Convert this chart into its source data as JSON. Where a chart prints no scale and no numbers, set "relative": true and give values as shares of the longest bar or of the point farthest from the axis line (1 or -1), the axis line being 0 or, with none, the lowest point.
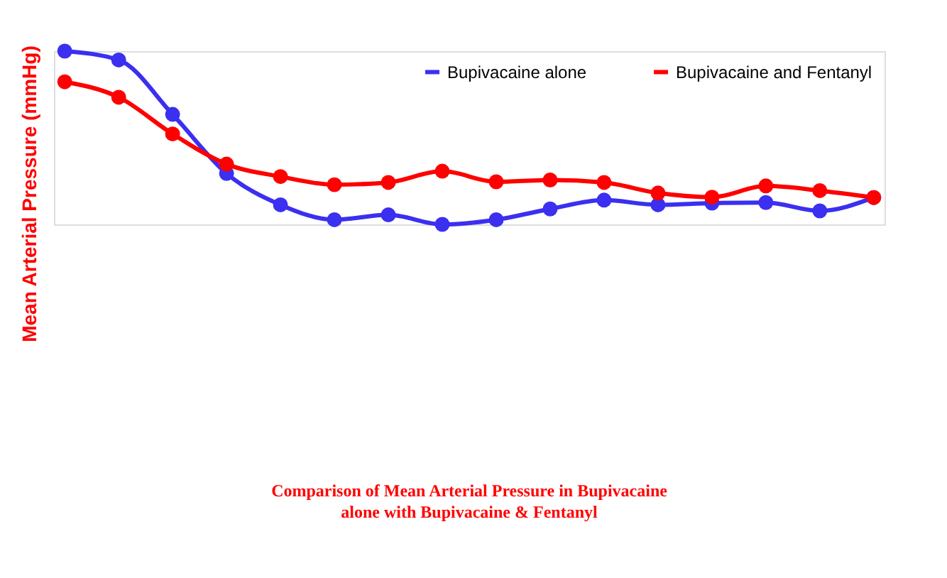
{
  "chart_data": {
    "type": "line",
    "relative": true,
    "title": "Comparison of Mean Arterial Pressure in Bupivacaine alone  with Bupivacaine & Fentanyl",
    "ylabel": "Mean Arterial Pressure (mmHg)",
    "categories": [
      null,
      null,
      null,
      null,
      null,
      null,
      null,
      null,
      null,
      null,
      null,
      null,
      null,
      null,
      null,
      null
    ],
    "marker": "circle",
    "grid": false,
    "legend": "top right",
    "series": [
      {
        "name": "Bupivacaine alone",
        "color": "#3b2ff0",
        "values": [
          1.0,
          0.949,
          0.635,
          0.294,
          0.113,
          0.027,
          0.055,
          0,
          0.027,
          0.089,
          0.14,
          0.113,
          0.123,
          0.126,
          0.078,
          0.155
        ]
      },
      {
        "name": "Bupivacaine and Fentanyl",
        "color": "#ff0000",
        "values": [
          0.823,
          0.734,
          0.522,
          0.348,
          0.276,
          0.229,
          0.242,
          0.307,
          0.246,
          0.256,
          0.242,
          0.181,
          0.157,
          0.222,
          0.195,
          0.155
        ]
      }
    ]
  }
}
